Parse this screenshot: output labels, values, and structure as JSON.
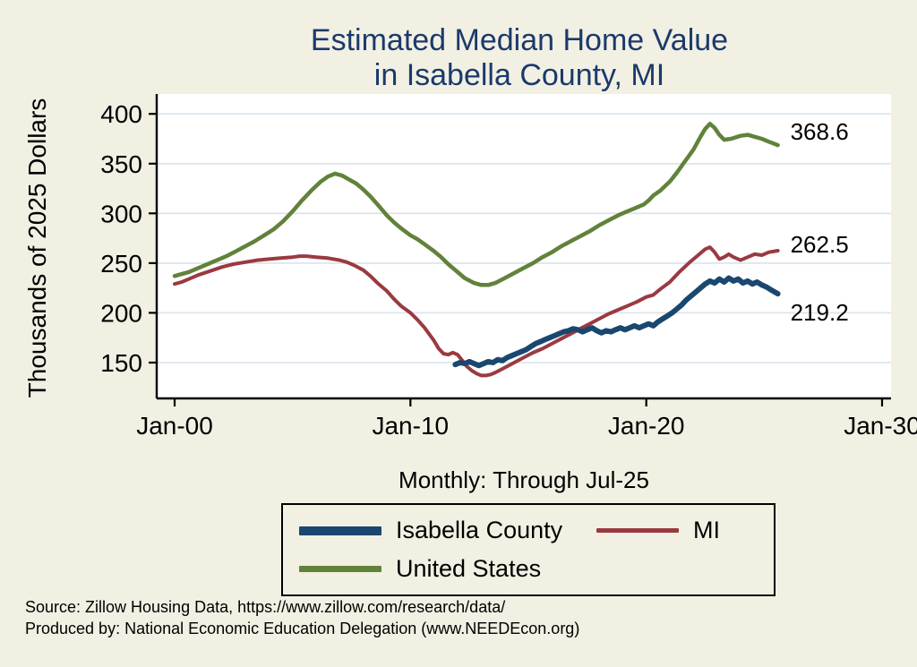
{
  "title_lines": [
    "Estimated Median Home Value",
    "in Isabella County, MI"
  ],
  "source": {
    "line1": "Source: Zillow Housing Data, https://www.zillow.com/research/data/",
    "line2": "Produced by: National Economic Education Delegation (www.NEEDEcon.org)"
  },
  "legend": {
    "items": [
      {
        "label": "Isabella County",
        "color": "#1a476f",
        "thickness": 10
      },
      {
        "label": "MI",
        "color": "#9a3a40",
        "thickness": 5
      },
      {
        "label": "United States",
        "color": "#61823a",
        "thickness": 7
      }
    ]
  },
  "colors": {
    "background": "#f2f0e3",
    "plot_background": "#ffffff",
    "grid": "#d9e3ee",
    "axis": "#000000",
    "title": "#1b3a6b"
  },
  "chart_data": {
    "type": "line",
    "title": "Estimated Median Home Value in Isabella County, MI",
    "ylabel": "Thousands of 2025 Dollars",
    "xlabel": "Monthly: Through Jul-25",
    "x_unit": "decimal_year",
    "xlim": [
      2000,
      2030
    ],
    "ylim": [
      114,
      420
    ],
    "grid": true,
    "legend_position": "bottom",
    "xticks": [
      {
        "label": "Jan-00",
        "x": 2000
      },
      {
        "label": "Jan-10",
        "x": 2010
      },
      {
        "label": "Jan-20",
        "x": 2020
      },
      {
        "label": "Jan-30",
        "x": 2030
      }
    ],
    "yticks": [
      150,
      200,
      250,
      300,
      350,
      400
    ],
    "series": [
      {
        "id": "united-states",
        "name": "United States",
        "color": "#61823a",
        "width": 4.5,
        "end_label": "368.6",
        "points": [
          [
            2000.0,
            237
          ],
          [
            2000.3,
            239
          ],
          [
            2000.6,
            241
          ],
          [
            2001.0,
            245
          ],
          [
            2001.4,
            249
          ],
          [
            2001.8,
            253
          ],
          [
            2002.2,
            257
          ],
          [
            2002.6,
            262
          ],
          [
            2003.0,
            267
          ],
          [
            2003.4,
            272
          ],
          [
            2003.8,
            278
          ],
          [
            2004.2,
            284
          ],
          [
            2004.6,
            292
          ],
          [
            2005.0,
            302
          ],
          [
            2005.4,
            313
          ],
          [
            2005.8,
            323
          ],
          [
            2006.2,
            332
          ],
          [
            2006.5,
            337
          ],
          [
            2006.8,
            340
          ],
          [
            2007.1,
            338
          ],
          [
            2007.4,
            334
          ],
          [
            2007.7,
            330
          ],
          [
            2008.0,
            324
          ],
          [
            2008.3,
            317
          ],
          [
            2008.6,
            309
          ],
          [
            2009.0,
            298
          ],
          [
            2009.3,
            291
          ],
          [
            2009.6,
            285
          ],
          [
            2010.0,
            278
          ],
          [
            2010.3,
            274
          ],
          [
            2010.6,
            269
          ],
          [
            2011.0,
            262
          ],
          [
            2011.3,
            256
          ],
          [
            2011.6,
            249
          ],
          [
            2012.0,
            241
          ],
          [
            2012.3,
            235
          ],
          [
            2012.7,
            230
          ],
          [
            2013.0,
            228
          ],
          [
            2013.3,
            228
          ],
          [
            2013.6,
            230
          ],
          [
            2014.0,
            235
          ],
          [
            2014.4,
            240
          ],
          [
            2014.8,
            245
          ],
          [
            2015.2,
            250
          ],
          [
            2015.6,
            256
          ],
          [
            2016.0,
            261
          ],
          [
            2016.4,
            267
          ],
          [
            2016.8,
            272
          ],
          [
            2017.2,
            277
          ],
          [
            2017.6,
            282
          ],
          [
            2018.0,
            288
          ],
          [
            2018.4,
            293
          ],
          [
            2018.8,
            298
          ],
          [
            2019.2,
            302
          ],
          [
            2019.6,
            306
          ],
          [
            2019.9,
            309
          ],
          [
            2020.1,
            313
          ],
          [
            2020.3,
            318
          ],
          [
            2020.6,
            323
          ],
          [
            2021.0,
            332
          ],
          [
            2021.3,
            341
          ],
          [
            2021.6,
            351
          ],
          [
            2022.0,
            364
          ],
          [
            2022.3,
            377
          ],
          [
            2022.5,
            385
          ],
          [
            2022.7,
            390
          ],
          [
            2022.9,
            386
          ],
          [
            2023.1,
            379
          ],
          [
            2023.3,
            374
          ],
          [
            2023.6,
            375
          ],
          [
            2024.0,
            378
          ],
          [
            2024.3,
            379
          ],
          [
            2024.6,
            377
          ],
          [
            2024.9,
            375
          ],
          [
            2025.2,
            372
          ],
          [
            2025.58,
            368.6
          ]
        ]
      },
      {
        "id": "mi",
        "name": "MI",
        "color": "#9a3a40",
        "width": 4,
        "end_label": "262.5",
        "points": [
          [
            2000.0,
            229
          ],
          [
            2000.3,
            231
          ],
          [
            2000.6,
            234
          ],
          [
            2001.0,
            238
          ],
          [
            2001.5,
            242
          ],
          [
            2002.0,
            246
          ],
          [
            2002.5,
            249
          ],
          [
            2003.0,
            251
          ],
          [
            2003.5,
            253
          ],
          [
            2004.0,
            254
          ],
          [
            2004.5,
            255
          ],
          [
            2005.0,
            256
          ],
          [
            2005.3,
            257
          ],
          [
            2005.6,
            257
          ],
          [
            2006.0,
            256
          ],
          [
            2006.5,
            255
          ],
          [
            2007.0,
            253
          ],
          [
            2007.3,
            251
          ],
          [
            2007.6,
            248
          ],
          [
            2008.0,
            243
          ],
          [
            2008.3,
            237
          ],
          [
            2008.6,
            230
          ],
          [
            2009.0,
            222
          ],
          [
            2009.3,
            214
          ],
          [
            2009.6,
            207
          ],
          [
            2010.0,
            200
          ],
          [
            2010.3,
            193
          ],
          [
            2010.6,
            185
          ],
          [
            2011.0,
            172
          ],
          [
            2011.2,
            164
          ],
          [
            2011.4,
            159
          ],
          [
            2011.6,
            158
          ],
          [
            2011.8,
            160
          ],
          [
            2012.0,
            158
          ],
          [
            2012.2,
            152
          ],
          [
            2012.4,
            146
          ],
          [
            2012.6,
            142
          ],
          [
            2012.8,
            139
          ],
          [
            2013.0,
            137
          ],
          [
            2013.2,
            137
          ],
          [
            2013.4,
            138
          ],
          [
            2013.6,
            140
          ],
          [
            2014.0,
            145
          ],
          [
            2014.4,
            150
          ],
          [
            2014.8,
            155
          ],
          [
            2015.2,
            160
          ],
          [
            2015.6,
            164
          ],
          [
            2016.0,
            169
          ],
          [
            2016.4,
            174
          ],
          [
            2016.8,
            179
          ],
          [
            2017.2,
            184
          ],
          [
            2017.6,
            189
          ],
          [
            2018.0,
            194
          ],
          [
            2018.4,
            199
          ],
          [
            2018.8,
            203
          ],
          [
            2019.2,
            207
          ],
          [
            2019.6,
            211
          ],
          [
            2020.0,
            216
          ],
          [
            2020.3,
            218
          ],
          [
            2020.6,
            224
          ],
          [
            2021.0,
            231
          ],
          [
            2021.4,
            241
          ],
          [
            2021.8,
            250
          ],
          [
            2022.2,
            258
          ],
          [
            2022.5,
            264
          ],
          [
            2022.7,
            266
          ],
          [
            2022.9,
            261
          ],
          [
            2023.1,
            254
          ],
          [
            2023.3,
            256
          ],
          [
            2023.5,
            259
          ],
          [
            2023.7,
            256
          ],
          [
            2024.0,
            253
          ],
          [
            2024.3,
            256
          ],
          [
            2024.6,
            259
          ],
          [
            2024.9,
            258
          ],
          [
            2025.2,
            261
          ],
          [
            2025.58,
            262.5
          ]
        ]
      },
      {
        "id": "isabella-county",
        "name": "Isabella County",
        "color": "#1a476f",
        "width": 6,
        "end_label": "219.2",
        "points": [
          [
            2011.9,
            148
          ],
          [
            2012.1,
            150
          ],
          [
            2012.3,
            149
          ],
          [
            2012.5,
            151
          ],
          [
            2012.7,
            149
          ],
          [
            2012.9,
            147
          ],
          [
            2013.1,
            149
          ],
          [
            2013.3,
            151
          ],
          [
            2013.5,
            150
          ],
          [
            2013.7,
            153
          ],
          [
            2013.9,
            152
          ],
          [
            2014.1,
            155
          ],
          [
            2014.3,
            157
          ],
          [
            2014.5,
            159
          ],
          [
            2014.7,
            161
          ],
          [
            2014.9,
            163
          ],
          [
            2015.1,
            166
          ],
          [
            2015.3,
            169
          ],
          [
            2015.5,
            171
          ],
          [
            2015.7,
            173
          ],
          [
            2015.9,
            175
          ],
          [
            2016.1,
            177
          ],
          [
            2016.3,
            179
          ],
          [
            2016.5,
            181
          ],
          [
            2016.7,
            182
          ],
          [
            2016.9,
            184
          ],
          [
            2017.1,
            183
          ],
          [
            2017.3,
            181
          ],
          [
            2017.5,
            183
          ],
          [
            2017.7,
            185
          ],
          [
            2017.9,
            182
          ],
          [
            2018.1,
            180
          ],
          [
            2018.3,
            182
          ],
          [
            2018.5,
            181
          ],
          [
            2018.7,
            183
          ],
          [
            2018.9,
            185
          ],
          [
            2019.1,
            183
          ],
          [
            2019.3,
            185
          ],
          [
            2019.5,
            187
          ],
          [
            2019.7,
            185
          ],
          [
            2019.9,
            187
          ],
          [
            2020.1,
            189
          ],
          [
            2020.3,
            187
          ],
          [
            2020.5,
            191
          ],
          [
            2020.7,
            194
          ],
          [
            2020.9,
            197
          ],
          [
            2021.1,
            200
          ],
          [
            2021.3,
            204
          ],
          [
            2021.5,
            208
          ],
          [
            2021.7,
            213
          ],
          [
            2021.9,
            217
          ],
          [
            2022.1,
            221
          ],
          [
            2022.3,
            225
          ],
          [
            2022.5,
            229
          ],
          [
            2022.7,
            232
          ],
          [
            2022.9,
            230
          ],
          [
            2023.1,
            234
          ],
          [
            2023.3,
            231
          ],
          [
            2023.5,
            235
          ],
          [
            2023.7,
            232
          ],
          [
            2023.9,
            234
          ],
          [
            2024.1,
            230
          ],
          [
            2024.3,
            232
          ],
          [
            2024.5,
            229
          ],
          [
            2024.7,
            231
          ],
          [
            2024.9,
            228
          ],
          [
            2025.1,
            226
          ],
          [
            2025.3,
            223
          ],
          [
            2025.58,
            219.2
          ]
        ]
      }
    ]
  }
}
